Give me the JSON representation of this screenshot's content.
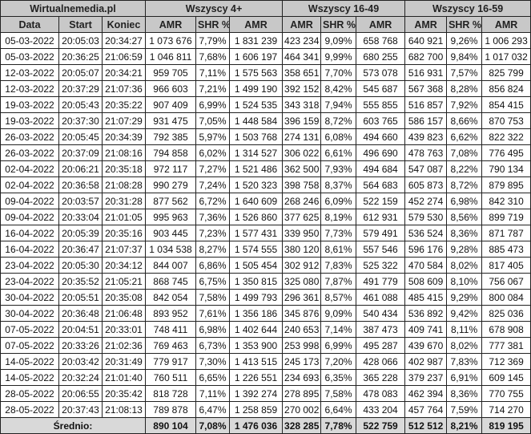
{
  "header": {
    "source": "Wirtualnemedia.pl",
    "groups": [
      "Wszyscy 4+",
      "Wszyscy 16-49",
      "Wszyscy 16-59"
    ],
    "columns": [
      "Data",
      "Start",
      "Koniec",
      "AMR",
      "SHR %",
      "AMR",
      "AMR",
      "SHR %",
      "AMR",
      "AMR",
      "SHR %",
      "AMR"
    ]
  },
  "rows": [
    [
      "05-03-2022",
      "20:05:03",
      "20:34:27",
      "1 073 676",
      "7,79%",
      "1 831 239",
      "423 234",
      "9,09%",
      "658 768",
      "640 921",
      "9,26%",
      "1 006 293"
    ],
    [
      "05-03-2022",
      "20:36:25",
      "21:06:59",
      "1 046 811",
      "7,68%",
      "1 606 197",
      "464 341",
      "9,99%",
      "680 255",
      "682 700",
      "9,84%",
      "1 017 032"
    ],
    [
      "12-03-2022",
      "20:05:07",
      "20:34:21",
      "959 705",
      "7,11%",
      "1 575 563",
      "358 651",
      "7,70%",
      "573 078",
      "516 931",
      "7,57%",
      "825 799"
    ],
    [
      "12-03-2022",
      "20:37:29",
      "21:07:36",
      "966 603",
      "7,21%",
      "1 499 190",
      "392 152",
      "8,42%",
      "545 687",
      "567 368",
      "8,28%",
      "856 824"
    ],
    [
      "19-03-2022",
      "20:05:43",
      "20:35:22",
      "907 409",
      "6,99%",
      "1 524 535",
      "343 318",
      "7,94%",
      "555 855",
      "516 857",
      "7,92%",
      "854 415"
    ],
    [
      "19-03-2022",
      "20:37:30",
      "21:07:29",
      "931 475",
      "7,05%",
      "1 448 584",
      "396 159",
      "8,72%",
      "603 765",
      "586 157",
      "8,66%",
      "870 753"
    ],
    [
      "26-03-2022",
      "20:05:45",
      "20:34:39",
      "792 385",
      "5,97%",
      "1 503 768",
      "274 131",
      "6,08%",
      "494 660",
      "439 823",
      "6,62%",
      "822 322"
    ],
    [
      "26-03-2022",
      "20:37:09",
      "21:08:16",
      "794 858",
      "6,02%",
      "1 314 527",
      "306 022",
      "6,61%",
      "496 690",
      "478 763",
      "7,08%",
      "776 495"
    ],
    [
      "02-04-2022",
      "20:06:21",
      "20:35:18",
      "972 117",
      "7,27%",
      "1 521 486",
      "362 500",
      "7,93%",
      "494 684",
      "547 087",
      "8,22%",
      "790 134"
    ],
    [
      "02-04-2022",
      "20:36:58",
      "21:08:28",
      "990 279",
      "7,24%",
      "1 520 323",
      "398 758",
      "8,37%",
      "564 683",
      "605 873",
      "8,72%",
      "879 895"
    ],
    [
      "09-04-2022",
      "20:03:57",
      "20:31:28",
      "877 562",
      "6,72%",
      "1 640 609",
      "268 246",
      "6,09%",
      "522 159",
      "452 274",
      "6,98%",
      "842 310"
    ],
    [
      "09-04-2022",
      "20:33:04",
      "21:01:05",
      "995 963",
      "7,36%",
      "1 526 860",
      "377 625",
      "8,19%",
      "612 931",
      "579 530",
      "8,56%",
      "899 719"
    ],
    [
      "16-04-2022",
      "20:05:39",
      "20:35:16",
      "903 445",
      "7,23%",
      "1 577 431",
      "339 950",
      "7,73%",
      "579 491",
      "536 524",
      "8,36%",
      "871 787"
    ],
    [
      "16-04-2022",
      "20:36:47",
      "21:07:37",
      "1 034 538",
      "8,27%",
      "1 574 555",
      "380 120",
      "8,61%",
      "557 546",
      "596 176",
      "9,28%",
      "885 473"
    ],
    [
      "23-04-2022",
      "20:05:30",
      "20:34:12",
      "844 007",
      "6,86%",
      "1 505 454",
      "302 912",
      "7,83%",
      "525 322",
      "470 584",
      "8,02%",
      "817 405"
    ],
    [
      "23-04-2022",
      "20:35:52",
      "21:05:21",
      "868 745",
      "6,75%",
      "1 350 815",
      "325 080",
      "7,87%",
      "491 779",
      "508 609",
      "8,10%",
      "756 067"
    ],
    [
      "30-04-2022",
      "20:05:51",
      "20:35:08",
      "842 054",
      "7,58%",
      "1 499 793",
      "296 361",
      "8,57%",
      "461 088",
      "485 415",
      "9,29%",
      "800 084"
    ],
    [
      "30-04-2022",
      "20:36:48",
      "21:06:48",
      "893 952",
      "7,61%",
      "1 356 186",
      "345 876",
      "9,09%",
      "540 434",
      "536 892",
      "9,42%",
      "825 036"
    ],
    [
      "07-05-2022",
      "20:04:51",
      "20:33:01",
      "748 411",
      "6,98%",
      "1 402 644",
      "240 653",
      "7,14%",
      "387 473",
      "409 741",
      "8,11%",
      "678 908"
    ],
    [
      "07-05-2022",
      "20:33:26",
      "21:02:36",
      "769 463",
      "6,73%",
      "1 353 900",
      "253 998",
      "6,99%",
      "495 287",
      "439 670",
      "8,02%",
      "777 381"
    ],
    [
      "14-05-2022",
      "20:03:42",
      "20:31:49",
      "779 917",
      "7,30%",
      "1 413 515",
      "245 173",
      "7,20%",
      "428 066",
      "402 987",
      "7,83%",
      "712 369"
    ],
    [
      "14-05-2022",
      "20:32:24",
      "21:01:40",
      "760 511",
      "6,65%",
      "1 226 551",
      "234 693",
      "6,35%",
      "365 228",
      "379 237",
      "6,91%",
      "609 145"
    ],
    [
      "28-05-2022",
      "20:06:55",
      "20:35:42",
      "818 728",
      "7,11%",
      "1 392 274",
      "278 895",
      "7,58%",
      "478 083",
      "462 394",
      "8,36%",
      "770 755"
    ],
    [
      "28-05-2022",
      "20:37:43",
      "21:08:13",
      "789 878",
      "6,47%",
      "1 258 859",
      "270 002",
      "6,64%",
      "433 204",
      "457 764",
      "7,59%",
      "714 270"
    ]
  ],
  "footer": {
    "label": "Średnio:",
    "values": [
      "890 104",
      "7,08%",
      "1 476 036",
      "328 285",
      "7,78%",
      "522 759",
      "512 512",
      "8,21%",
      "819 195"
    ]
  },
  "colors": {
    "header_bg": "#c8c8c8",
    "footer_bg": "#d9d9d9",
    "border": "#222222"
  }
}
